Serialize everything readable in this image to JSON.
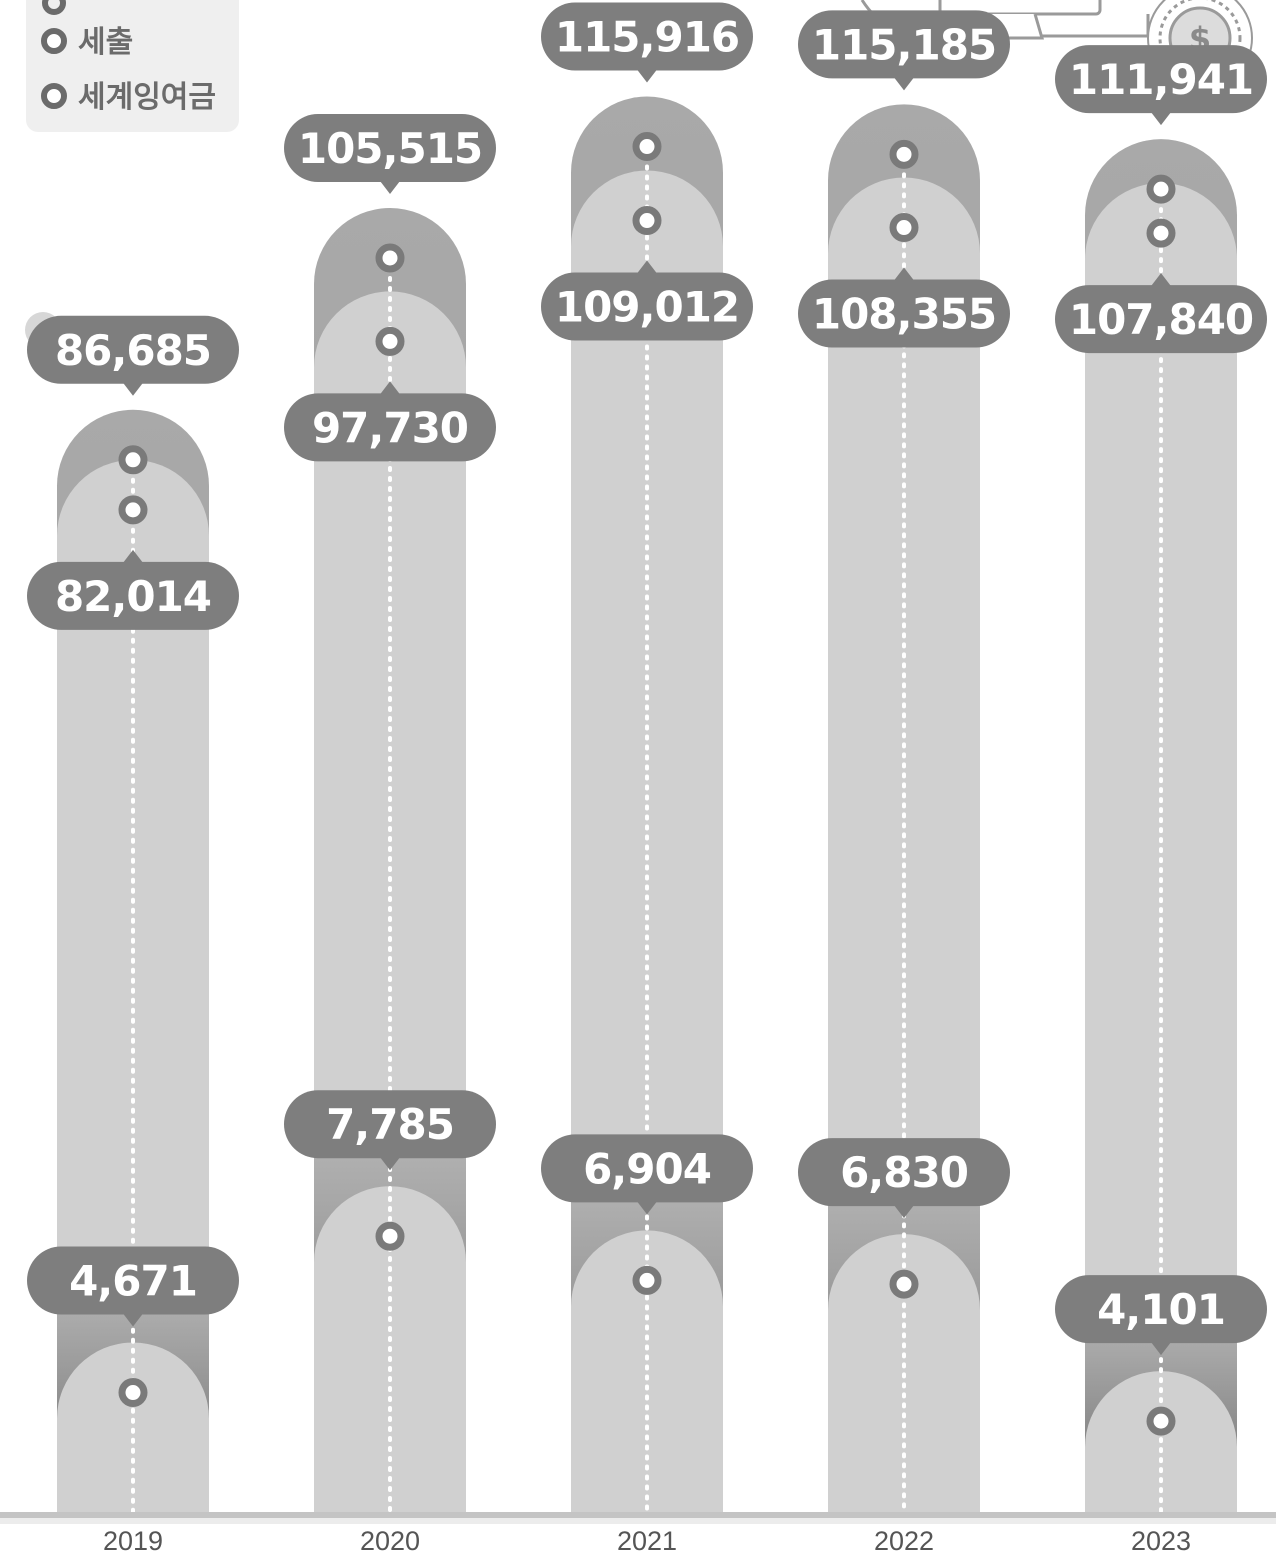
{
  "legend": {
    "items": [
      {
        "label": "세출"
      },
      {
        "label": "세계잉여금"
      }
    ]
  },
  "colors": {
    "pillar_light": "#d0d0d0",
    "pillar_dark": "#a8a8a8",
    "callout": "#7e7e7e",
    "marker": "#7a7a7a",
    "axis": "#bdbdbd"
  },
  "icons": [
    "dollar-coin-icon",
    "monitor-icon"
  ],
  "chart_data": {
    "type": "bar",
    "categories": [
      "2019",
      "2020",
      "2021",
      "2022",
      "2023"
    ],
    "series": [
      {
        "values": [
          86685,
          105515,
          115916,
          115185,
          111941
        ]
      },
      {
        "name": "세출",
        "values": [
          82014,
          97730,
          109012,
          108355,
          107840
        ]
      },
      {
        "name": "세계잉여금",
        "values": [
          4671,
          7785,
          6904,
          6830,
          4101
        ]
      }
    ],
    "labels": [
      [
        "86,685",
        "105,515",
        "115,916",
        "115,185",
        "111,941"
      ],
      [
        "82,014",
        "97,730",
        "109,012",
        "108,355",
        "107,840"
      ],
      [
        "4,671",
        "7,785",
        "6,904",
        "6,830",
        "4,101"
      ]
    ]
  }
}
